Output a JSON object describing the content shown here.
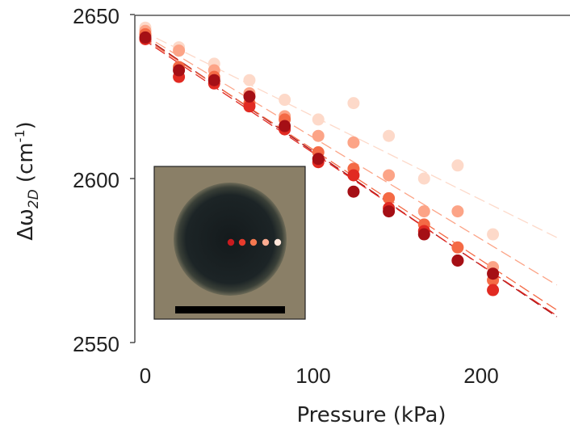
{
  "chart_data": {
    "type": "scatter",
    "xlabel": "Pressure (kPa)",
    "ylabel": {
      "prefix": "Δω",
      "subscript": "2D",
      "unit_open": " (cm",
      "unit_sup": "-1",
      "unit_close": ")"
    },
    "xlim": [
      -5,
      245
    ],
    "ylim": [
      2550,
      2650
    ],
    "xticks": [
      0,
      100,
      200
    ],
    "yticks": [
      2550,
      2600,
      2650
    ],
    "x_tick_labels": [
      "0",
      "100",
      "200"
    ],
    "y_tick_labels": [
      "2550",
      "2600",
      "2650"
    ],
    "grid": false,
    "legend": "none",
    "inset": "micrograph of a dark circular membrane with five measurement points marked by colored dots and a black scale bar",
    "series": [
      {
        "color": "#a50f15",
        "x": [
          0,
          20,
          41,
          62,
          83,
          103,
          124,
          145,
          166,
          186,
          207
        ],
        "y": [
          2643,
          2633,
          2630,
          2625,
          2616,
          2606,
          2596,
          2590,
          2583,
          2575,
          2571
        ],
        "fit": [
          2643,
          -0.3475
        ]
      },
      {
        "color": "#e12a22",
        "x": [
          0,
          20,
          41,
          62,
          83,
          103,
          124,
          145,
          166,
          186,
          207
        ],
        "y": [
          2642.5,
          2631,
          2629,
          2622,
          2615,
          2605,
          2601,
          2591,
          2584,
          2575,
          2566
        ],
        "fit": [
          2642,
          -0.342
        ]
      },
      {
        "color": "#f46a45",
        "x": [
          0,
          20,
          41,
          62,
          83,
          103,
          124,
          145,
          166,
          186,
          207
        ],
        "y": [
          2644,
          2634,
          2631,
          2623,
          2618,
          2608,
          2603,
          2594,
          2586,
          2579,
          2569
        ],
        "fit": [
          2642.5,
          -0.337
        ]
      },
      {
        "color": "#fca487",
        "x": [
          0,
          20,
          41,
          62,
          83,
          103,
          124,
          145,
          166,
          186,
          207
        ],
        "y": [
          2645,
          2639,
          2633,
          2626,
          2619,
          2613,
          2611,
          2601,
          2590,
          2590,
          2573
        ],
        "fit": [
          2643.5,
          -0.31
        ]
      },
      {
        "color": "#fdd9c9",
        "x": [
          0,
          20,
          41,
          62,
          83,
          103,
          124,
          145,
          166,
          186,
          207
        ],
        "y": [
          2646,
          2640,
          2635,
          2630,
          2624,
          2618,
          2623,
          2613,
          2600,
          2604,
          2583
        ],
        "fit": [
          2644.5,
          -0.255
        ]
      }
    ]
  }
}
